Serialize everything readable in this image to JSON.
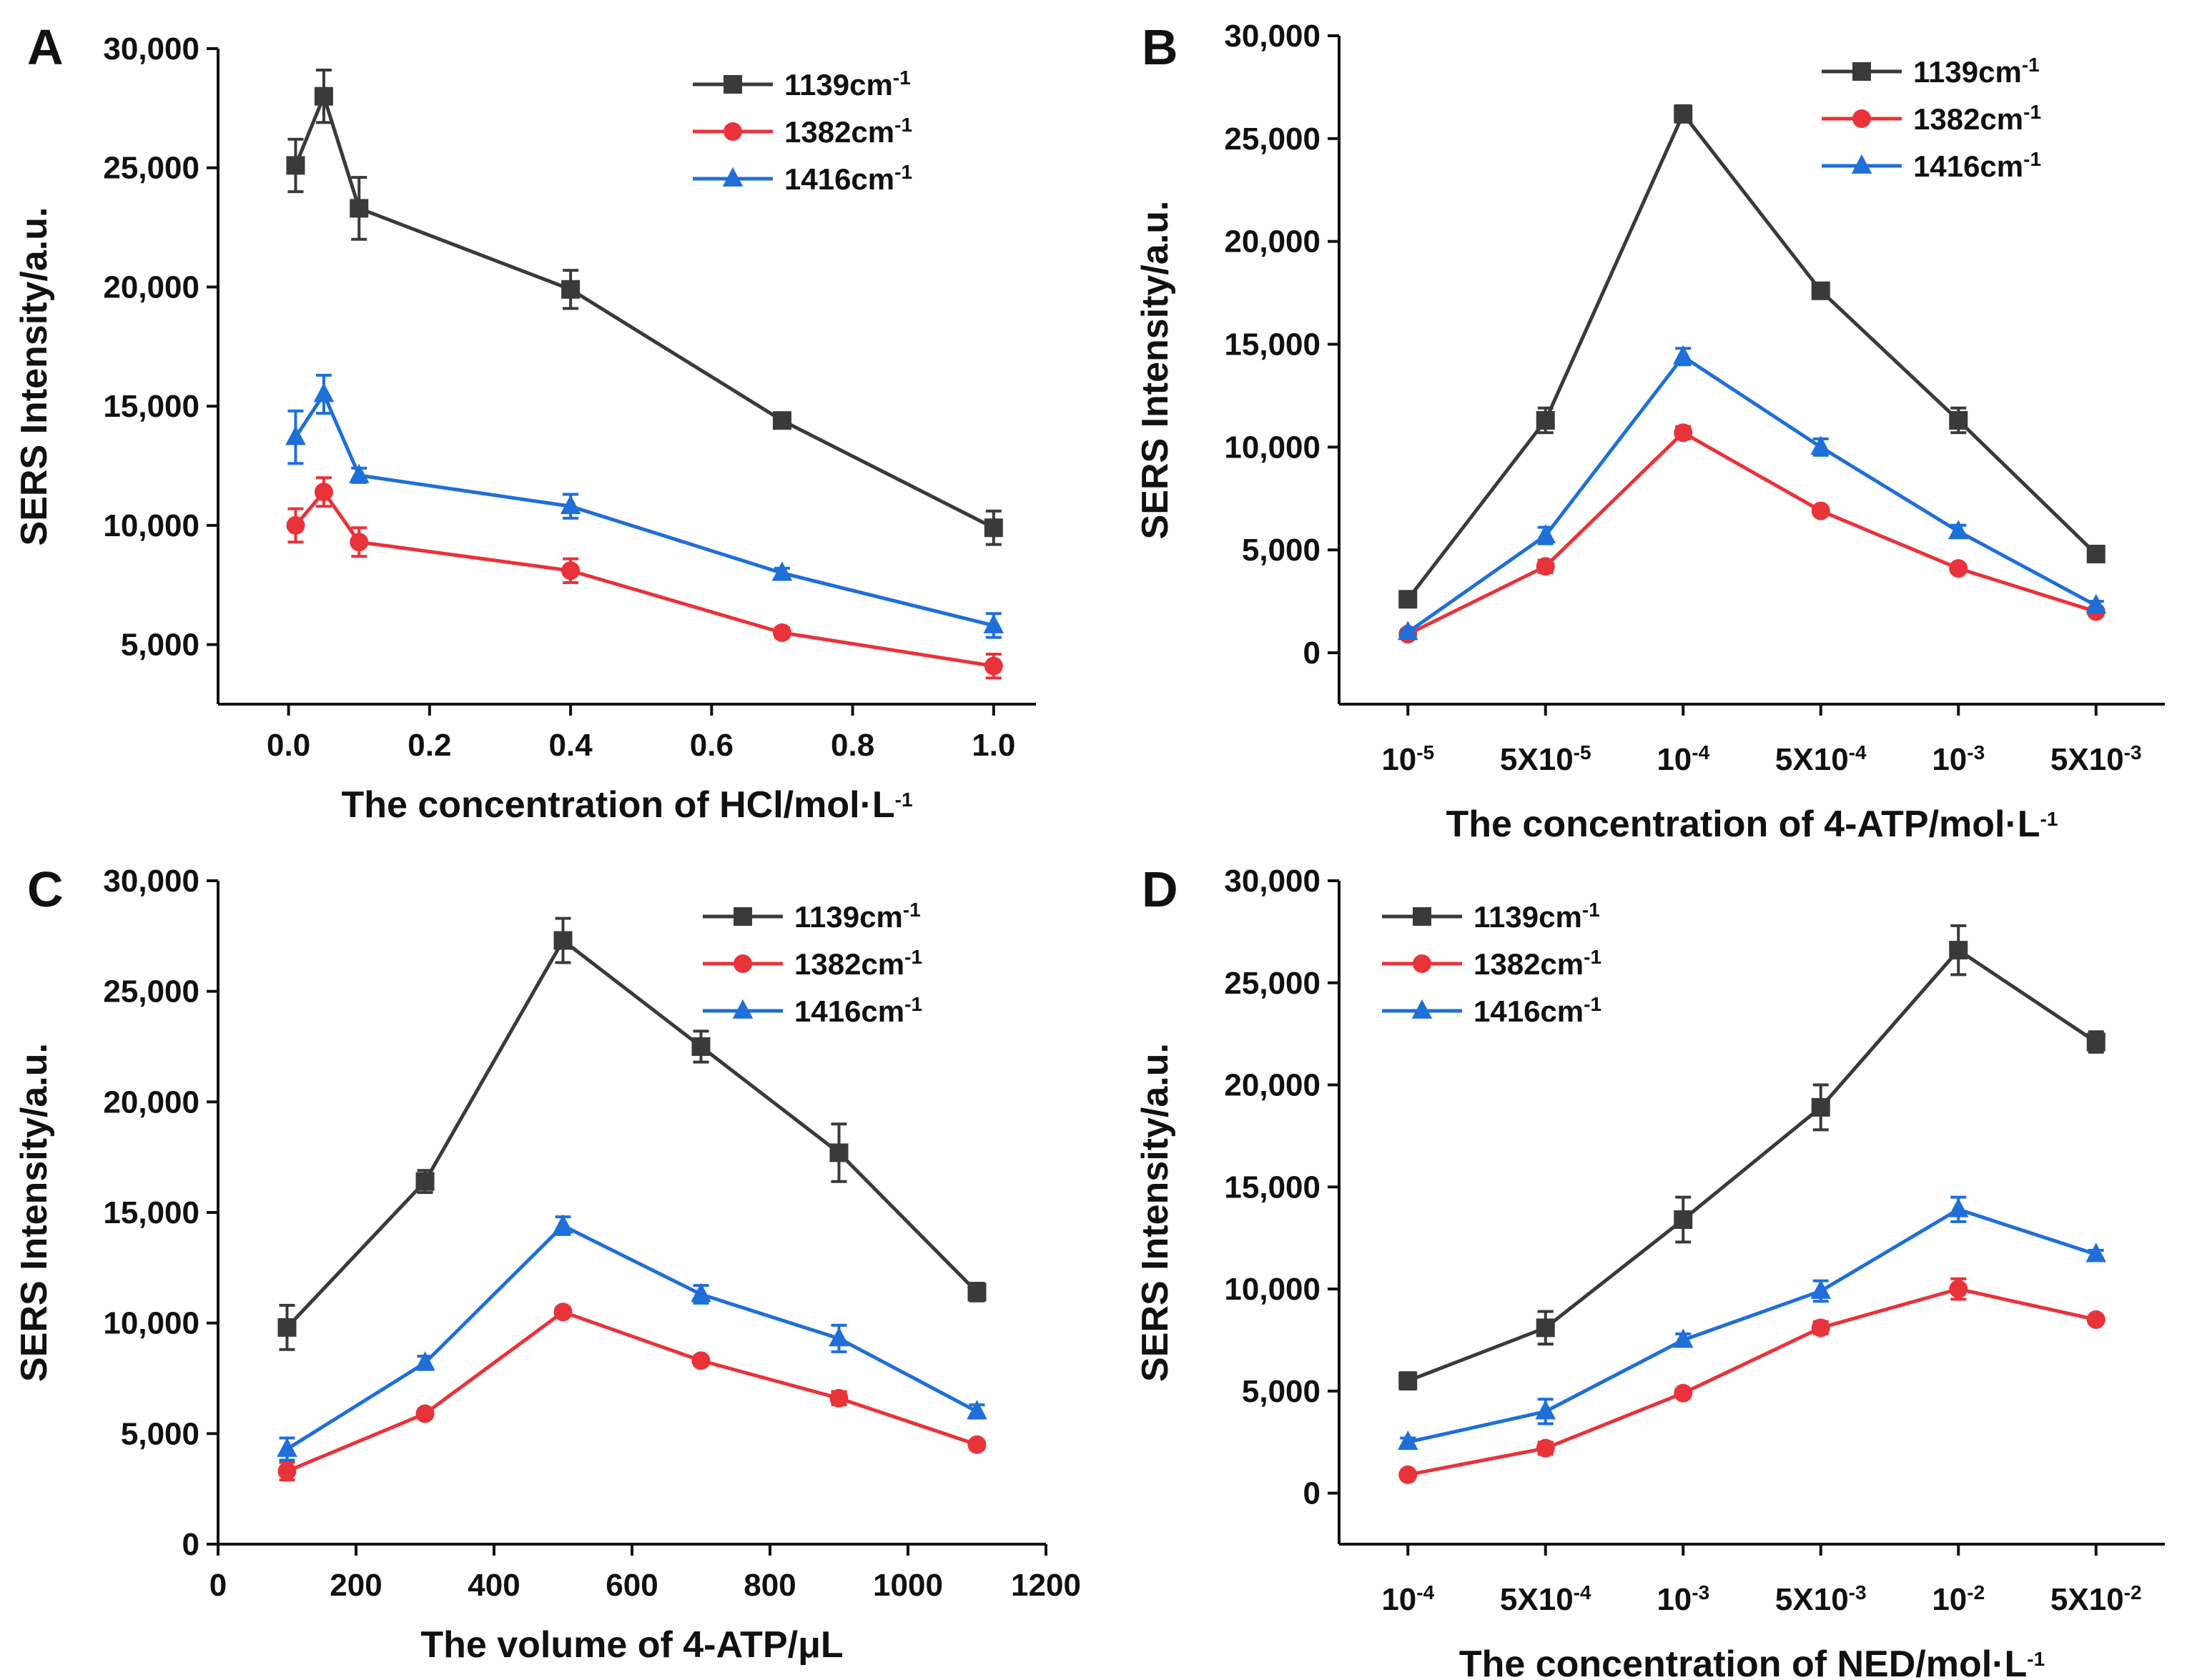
{
  "chart_data": [
    {
      "type": "line",
      "panel": "A",
      "xscale": "linear",
      "x": [
        0.01,
        0.05,
        0.1,
        0.4,
        0.7,
        1.0
      ],
      "xticks": [
        0.0,
        0.2,
        0.4,
        0.6,
        0.8,
        1.0
      ],
      "xtick_labels": [
        "0.0",
        "0.2",
        "0.4",
        "0.6",
        "0.8",
        "1.0"
      ],
      "xlim": [
        -0.1,
        1.06
      ],
      "ylim": [
        2500,
        30000
      ],
      "yticks": [
        5000,
        10000,
        15000,
        20000,
        25000,
        30000
      ],
      "ytick_labels": [
        "5,000",
        "10,000",
        "15,000",
        "20,000",
        "25,000",
        "30,000"
      ],
      "xlabel": "The concentration of HCl/mol·L",
      "xlabel_sup": "-1",
      "ylabel": "SERS Intensity/a.u.",
      "legend_position": "top-right",
      "series": [
        {
          "name": "1139cm",
          "name_sup": "-1",
          "color": "#3a3a3a",
          "marker": "square",
          "values": [
            25100,
            28000,
            23300,
            19900,
            14400,
            9900
          ],
          "errors": [
            1100,
            1100,
            1300,
            800,
            200,
            700
          ]
        },
        {
          "name": "1382cm",
          "name_sup": "-1",
          "color": "#e8333a",
          "marker": "circle",
          "values": [
            10000,
            11400,
            9300,
            8100,
            5500,
            4100
          ],
          "errors": [
            700,
            600,
            600,
            500,
            200,
            500
          ]
        },
        {
          "name": "1416cm",
          "name_sup": "-1",
          "color": "#1f6fd8",
          "marker": "triangle",
          "values": [
            13700,
            15500,
            12100,
            10800,
            8000,
            5800
          ],
          "errors": [
            1100,
            800,
            300,
            500,
            200,
            500
          ]
        }
      ]
    },
    {
      "type": "line",
      "panel": "B",
      "xscale": "category",
      "categories_base": [
        "10",
        "5X10",
        "10",
        "5X10",
        "10",
        "5X10"
      ],
      "categories_sup": [
        "-5",
        "-5",
        "-4",
        "-4",
        "-3",
        "-3"
      ],
      "xlim": [
        -0.5,
        5.5
      ],
      "ylim": [
        -2500,
        30000
      ],
      "yticks": [
        0,
        5000,
        10000,
        15000,
        20000,
        25000,
        30000
      ],
      "ytick_labels": [
        "0",
        "5,000",
        "10,000",
        "15,000",
        "20,000",
        "25,000",
        "30,000"
      ],
      "xlabel": "The concentration of 4-ATP/mol·L",
      "xlabel_sup": "-1",
      "ylabel": "SERS Intensity/a.u.",
      "legend_position": "top-right",
      "series": [
        {
          "name": "1139cm",
          "name_sup": "-1",
          "color": "#3a3a3a",
          "marker": "square",
          "values": [
            2600,
            11300,
            26200,
            17600,
            11300,
            4800
          ],
          "errors": [
            200,
            600,
            400,
            300,
            600,
            200
          ]
        },
        {
          "name": "1382cm",
          "name_sup": "-1",
          "color": "#e8333a",
          "marker": "circle",
          "values": [
            900,
            4200,
            10700,
            6900,
            4100,
            2000
          ],
          "errors": [
            100,
            300,
            300,
            200,
            200,
            100
          ]
        },
        {
          "name": "1416cm",
          "name_sup": "-1",
          "color": "#1f6fd8",
          "marker": "triangle",
          "values": [
            1000,
            5700,
            14400,
            10000,
            5900,
            2300
          ],
          "errors": [
            100,
            400,
            400,
            400,
            300,
            200
          ]
        }
      ]
    },
    {
      "type": "line",
      "panel": "C",
      "xscale": "linear",
      "x": [
        100,
        300,
        500,
        700,
        900,
        1100
      ],
      "xticks": [
        0,
        200,
        400,
        600,
        800,
        1000,
        1200
      ],
      "xtick_labels": [
        "0",
        "200",
        "400",
        "600",
        "800",
        "1000",
        "1200"
      ],
      "xlim": [
        0,
        1200
      ],
      "ylim": [
        0,
        30000
      ],
      "yticks": [
        0,
        5000,
        10000,
        15000,
        20000,
        25000,
        30000
      ],
      "ytick_labels": [
        "0",
        "5,000",
        "10,000",
        "15,000",
        "20,000",
        "25,000",
        "30,000"
      ],
      "xlabel": "The volume of 4-ATP/μL",
      "xlabel_sup": "",
      "ylabel": "SERS Intensity/a.u.",
      "legend_position": "top-right",
      "series": [
        {
          "name": "1139cm",
          "name_sup": "-1",
          "color": "#3a3a3a",
          "marker": "square",
          "values": [
            9800,
            16400,
            27300,
            22500,
            17700,
            11400
          ],
          "errors": [
            1000,
            500,
            1000,
            700,
            1300,
            400
          ]
        },
        {
          "name": "1382cm",
          "name_sup": "-1",
          "color": "#e8333a",
          "marker": "circle",
          "values": [
            3300,
            5900,
            10500,
            8300,
            6600,
            4500
          ],
          "errors": [
            400,
            200,
            200,
            200,
            300,
            200
          ]
        },
        {
          "name": "1416cm",
          "name_sup": "-1",
          "color": "#1f6fd8",
          "marker": "triangle",
          "values": [
            4300,
            8200,
            14400,
            11300,
            9300,
            6000
          ],
          "errors": [
            500,
            300,
            400,
            400,
            600,
            300
          ]
        }
      ]
    },
    {
      "type": "line",
      "panel": "D",
      "xscale": "category",
      "categories_base": [
        "10",
        "5X10",
        "10",
        "5X10",
        "10",
        "5X10"
      ],
      "categories_sup": [
        "-4",
        "-4",
        "-3",
        "-3",
        "-2",
        "-2"
      ],
      "xlim": [
        -0.5,
        5.5
      ],
      "ylim": [
        -2500,
        30000
      ],
      "yticks": [
        0,
        5000,
        10000,
        15000,
        20000,
        25000,
        30000
      ],
      "ytick_labels": [
        "0",
        "5,000",
        "10,000",
        "15,000",
        "20,000",
        "25,000",
        "30,000"
      ],
      "xlabel": "The concentration of NED/mol·L",
      "xlabel_sup": "-1",
      "ylabel": "SERS Intensity/a.u.",
      "legend_position": "top-left",
      "series": [
        {
          "name": "1139cm",
          "name_sup": "-1",
          "color": "#3a3a3a",
          "marker": "square",
          "values": [
            5500,
            8100,
            13400,
            18900,
            26600,
            22100
          ],
          "errors": [
            400,
            800,
            1100,
            1100,
            1200,
            500
          ]
        },
        {
          "name": "1382cm",
          "name_sup": "-1",
          "color": "#e8333a",
          "marker": "circle",
          "values": [
            900,
            2200,
            4900,
            8100,
            10000,
            8500
          ],
          "errors": [
            100,
            300,
            200,
            300,
            500,
            200
          ]
        },
        {
          "name": "1416cm",
          "name_sup": "-1",
          "color": "#1f6fd8",
          "marker": "triangle",
          "values": [
            2500,
            4000,
            7500,
            9900,
            13900,
            11700
          ],
          "errors": [
            200,
            600,
            300,
            500,
            600,
            200
          ]
        }
      ]
    }
  ]
}
